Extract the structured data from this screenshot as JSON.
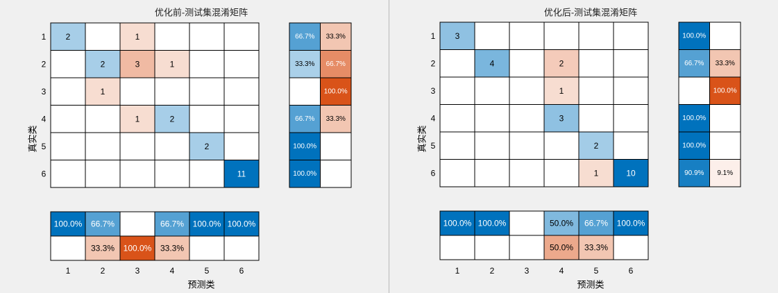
{
  "chart_data": [
    {
      "type": "heatmap",
      "title": "优化前-测试集混淆矩阵",
      "xlabel": "预测类",
      "ylabel": "真实类",
      "row_labels": [
        "1",
        "2",
        "3",
        "4",
        "5",
        "6"
      ],
      "col_labels": [
        "1",
        "2",
        "3",
        "4",
        "5",
        "6"
      ],
      "matrix": [
        [
          2,
          0,
          1,
          0,
          0,
          0
        ],
        [
          0,
          2,
          3,
          1,
          0,
          0
        ],
        [
          0,
          1,
          0,
          0,
          0,
          0
        ],
        [
          0,
          0,
          1,
          2,
          0,
          0
        ],
        [
          0,
          0,
          0,
          0,
          2,
          0
        ],
        [
          0,
          0,
          0,
          0,
          0,
          11
        ]
      ],
      "row_summary": [
        [
          "66.7%",
          "33.3%"
        ],
        [
          "33.3%",
          "66.7%"
        ],
        [
          "",
          "100.0%"
        ],
        [
          "66.7%",
          "33.3%"
        ],
        [
          "100.0%",
          ""
        ],
        [
          "100.0%",
          ""
        ]
      ],
      "column_summary": [
        [
          "100.0%",
          "66.7%",
          "",
          "66.7%",
          "100.0%",
          "100.0%"
        ],
        [
          "",
          "33.3%",
          "100.0%",
          "33.3%",
          "",
          ""
        ]
      ]
    },
    {
      "type": "heatmap",
      "title": "优化后-测试集混淆矩阵",
      "xlabel": "预测类",
      "ylabel": "真实类",
      "row_labels": [
        "1",
        "2",
        "3",
        "4",
        "5",
        "6"
      ],
      "col_labels": [
        "1",
        "2",
        "3",
        "4",
        "5",
        "6"
      ],
      "matrix": [
        [
          3,
          0,
          0,
          0,
          0,
          0
        ],
        [
          0,
          4,
          0,
          2,
          0,
          0
        ],
        [
          0,
          0,
          0,
          1,
          0,
          0
        ],
        [
          0,
          0,
          0,
          3,
          0,
          0
        ],
        [
          0,
          0,
          0,
          0,
          2,
          0
        ],
        [
          0,
          0,
          0,
          0,
          1,
          10
        ]
      ],
      "row_summary": [
        [
          "100.0%",
          ""
        ],
        [
          "66.7%",
          "33.3%"
        ],
        [
          "",
          "100.0%"
        ],
        [
          "100.0%",
          ""
        ],
        [
          "100.0%",
          ""
        ],
        [
          "90.9%",
          "9.1%"
        ]
      ],
      "column_summary": [
        [
          "100.0%",
          "100.0%",
          "",
          "50.0%",
          "66.7%",
          "100.0%"
        ],
        [
          "",
          "",
          "",
          "50.0%",
          "33.3%",
          ""
        ]
      ]
    }
  ]
}
